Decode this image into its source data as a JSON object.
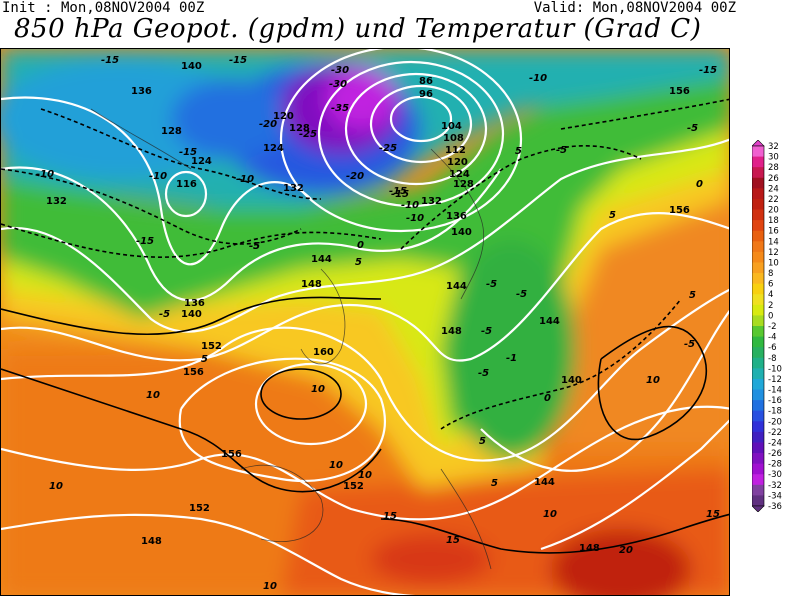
{
  "header": {
    "init": "Init : Mon,08NOV2004  00Z",
    "valid": "Valid: Mon,08NOV2004  00Z",
    "title": "850 hPa Geopot. (gpdm) und Temperatur (Grad C)"
  },
  "colors": {
    "temp_scale": {
      "32": "#e040c8",
      "30": "#f060d0",
      "28": "#e0208a",
      "26": "#c81850",
      "24": "#a01020",
      "22": "#b81818",
      "20": "#c02010",
      "18": "#d03010",
      "16": "#e04410",
      "14": "#e86010",
      "12": "#f07818",
      "10": "#f58a1a",
      "8": "#f8a020",
      "6": "#fab820",
      "4": "#f8d010",
      "2": "#f0e020",
      "0": "#d8ea10",
      "-2": "#a8dc20",
      "-4": "#58c830",
      "-6": "#30b840",
      "-8": "#28b060",
      "-10": "#20b088",
      "-12": "#20b0b0",
      "-14": "#20a8d8",
      "-16": "#2090e0",
      "-18": "#2070e0",
      "-20": "#2850e0",
      "-22": "#3030d8",
      "-24": "#4020c0",
      "-26": "#6010b8",
      "-28": "#8010c0",
      "-30": "#a010d0",
      "-32": "#c020e0",
      "-34": "#8040a0",
      "-36": "#603080"
    }
  },
  "colorbar": {
    "labels": [
      "32",
      "30",
      "28",
      "26",
      "24",
      "22",
      "20",
      "18",
      "16",
      "14",
      "12",
      "10",
      "8",
      "6",
      "4",
      "2",
      "0",
      "-2",
      "-4",
      "-6",
      "-8",
      "-10",
      "-12",
      "-14",
      "-16",
      "-18",
      "-20",
      "-22",
      "-24",
      "-26",
      "-28",
      "-30",
      "-32",
      "-34",
      "-36"
    ]
  },
  "map": {
    "geopot_labels": [
      "140",
      "136",
      "128",
      "120",
      "124",
      "116",
      "132",
      "124",
      "128",
      "132",
      "86",
      "96",
      "104",
      "108",
      "112",
      "120",
      "124",
      "128",
      "132",
      "136",
      "140",
      "144",
      "148",
      "152",
      "156",
      "160",
      "156",
      "144",
      "148",
      "136",
      "140",
      "152",
      "148",
      "152",
      "156",
      "144",
      "148",
      "156",
      "140",
      "144"
    ],
    "temp_labels": [
      "-15",
      "-15",
      "-15",
      "-10",
      "-10",
      "-15",
      "-10",
      "-5",
      "-5",
      "-10",
      "-15",
      "-20",
      "-25",
      "-30",
      "-35",
      "-30",
      "-25",
      "-20",
      "-15",
      "-10",
      "-5",
      "0",
      "5",
      "5",
      "-5",
      "-5",
      "-5",
      "-5",
      "-1",
      "0",
      "5",
      "5",
      "10",
      "10",
      "10",
      "10",
      "10",
      "15",
      "15",
      "20",
      "15",
      "5",
      "0",
      "5",
      "-5",
      "5",
      "10",
      "10",
      "-10",
      "-15",
      "-5",
      "-5",
      "10"
    ]
  }
}
